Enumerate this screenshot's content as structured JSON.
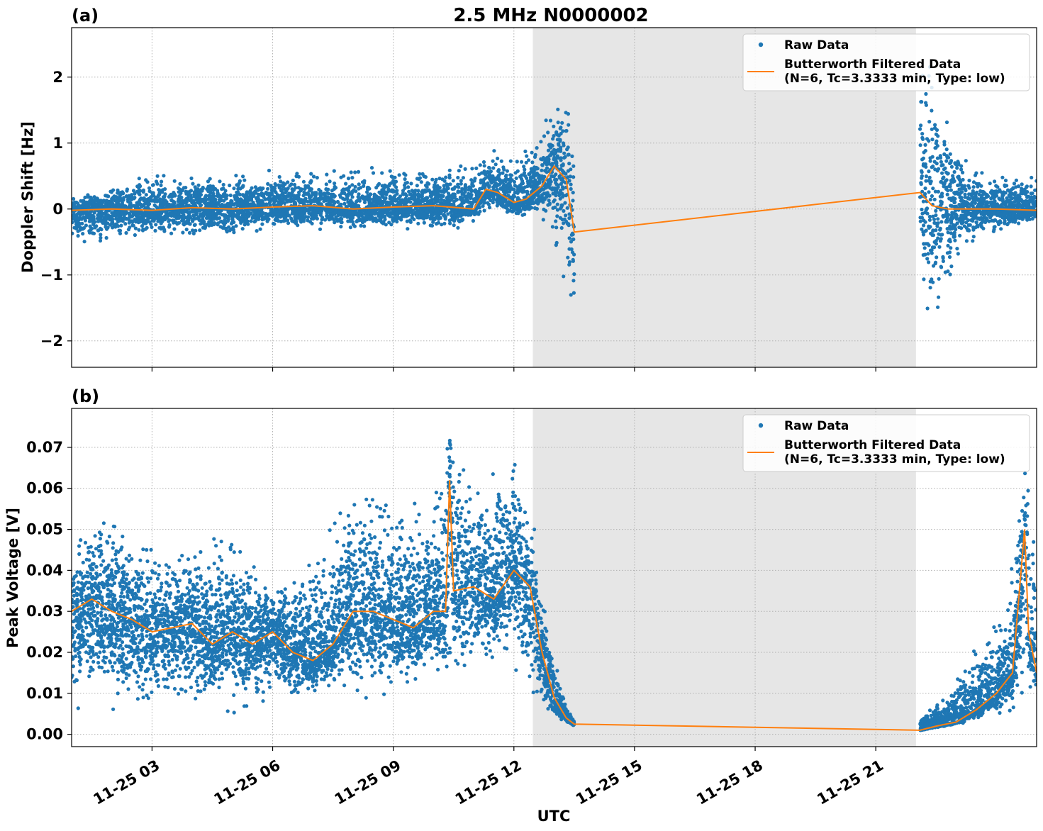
{
  "figure": {
    "title": "2.5 MHz N0000002",
    "xlabel": "UTC"
  },
  "colors": {
    "raw": "#1f77b4",
    "filtered": "#ff7f0e",
    "shade": "#e6e6e6",
    "grid": "#b0b0b0"
  },
  "chart_data": [
    {
      "type": "scatter",
      "panel_label": "(a)",
      "title": "2.5 MHz N0000002",
      "ylabel": "Doppler Shift [Hz]",
      "xlabel": "",
      "x_unit": "hours UTC on 11-25",
      "xlim": [
        1.0,
        25.0
      ],
      "ylim": [
        -2.4,
        2.75
      ],
      "yticks": [
        -2,
        -1,
        0,
        1,
        2
      ],
      "ytick_labels": [
        "−2",
        "−1",
        "0",
        "1",
        "2"
      ],
      "xticks": [
        3,
        6,
        9,
        12,
        15,
        18,
        21
      ],
      "grid": true,
      "legend_position": "top-right",
      "shaded_interval": [
        12.47,
        22.0
      ],
      "data_gap": [
        13.5,
        22.1
      ],
      "series": [
        {
          "name": "Raw Data",
          "kind": "markers",
          "envelope": {
            "x": [
              1.0,
              2.0,
              3.0,
              4.0,
              5.0,
              6.0,
              7.0,
              8.0,
              9.0,
              10.0,
              11.0,
              11.5,
              12.0,
              12.5,
              13.0,
              13.4,
              13.5,
              22.1,
              22.4,
              22.8,
              23.2,
              24.0,
              25.0
            ],
            "lower": [
              -0.6,
              -0.5,
              -0.4,
              -0.4,
              -0.45,
              -0.3,
              -0.3,
              -0.35,
              -0.3,
              -0.3,
              -0.3,
              0.0,
              -0.2,
              -0.1,
              -0.4,
              -1.6,
              -1.55,
              -1.5,
              -2.15,
              -1.1,
              -0.6,
              -0.4,
              -0.2
            ],
            "upper": [
              0.2,
              0.35,
              0.6,
              0.5,
              0.5,
              0.6,
              0.65,
              0.6,
              0.7,
              0.6,
              0.8,
              0.95,
              0.7,
              1.1,
              1.6,
              1.7,
              1.65,
              2.55,
              2.2,
              1.6,
              0.8,
              0.5,
              0.5
            ]
          }
        },
        {
          "name": "Butterworth Filtered Data\n(N=6, Tc=3.3333 min, Type: low)",
          "kind": "line",
          "x": [
            1.0,
            2.0,
            3.0,
            4.0,
            5.0,
            6.0,
            7.0,
            8.0,
            9.0,
            10.0,
            11.0,
            11.3,
            11.6,
            12.0,
            12.3,
            12.7,
            13.0,
            13.3,
            13.5,
            22.1,
            22.4,
            22.8,
            23.2,
            24.0,
            25.0
          ],
          "y": [
            -0.02,
            0.0,
            -0.02,
            0.02,
            0.0,
            0.03,
            0.05,
            0.0,
            0.03,
            0.05,
            0.0,
            0.3,
            0.25,
            0.1,
            0.15,
            0.35,
            0.65,
            0.45,
            -0.35,
            0.25,
            0.05,
            0.0,
            0.0,
            0.0,
            -0.02
          ]
        }
      ]
    },
    {
      "type": "scatter",
      "panel_label": "(b)",
      "title": "",
      "ylabel": "Peak Voltage [V]",
      "xlabel": "UTC",
      "x_unit": "hours UTC on 11-25",
      "xlim": [
        1.0,
        25.0
      ],
      "ylim": [
        -0.003,
        0.0795
      ],
      "yticks": [
        0.0,
        0.01,
        0.02,
        0.03,
        0.04,
        0.05,
        0.06,
        0.07
      ],
      "ytick_labels": [
        "0.00",
        "0.01",
        "0.02",
        "0.03",
        "0.04",
        "0.05",
        "0.06",
        "0.07"
      ],
      "xticks": [
        3,
        6,
        9,
        12,
        15,
        18,
        21
      ],
      "xtick_labels": [
        "11-25 03",
        "11-25 06",
        "11-25 09",
        "11-25 12",
        "11-25 15",
        "11-25 18",
        "11-25 21"
      ],
      "grid": true,
      "legend_position": "top-right",
      "shaded_interval": [
        12.47,
        22.0
      ],
      "data_gap": [
        13.5,
        22.1
      ],
      "series": [
        {
          "name": "Raw Data",
          "kind": "markers",
          "envelope": {
            "x": [
              1.0,
              1.5,
              2.0,
              3.0,
              4.0,
              5.0,
              6.0,
              7.0,
              8.0,
              9.0,
              10.0,
              10.4,
              11.0,
              11.9,
              12.4,
              12.8,
              13.2,
              13.5,
              22.1,
              22.8,
              23.4,
              24.2,
              24.7,
              25.0
            ],
            "lower": [
              0.005,
              0.007,
              0.005,
              0.008,
              0.007,
              0.005,
              0.008,
              0.01,
              0.008,
              0.01,
              0.012,
              0.013,
              0.015,
              0.018,
              0.01,
              0.005,
              0.003,
              0.002,
              0.001,
              0.002,
              0.003,
              0.005,
              0.007,
              0.01
            ],
            "upper": [
              0.045,
              0.057,
              0.055,
              0.045,
              0.045,
              0.053,
              0.035,
              0.045,
              0.06,
              0.055,
              0.058,
              0.076,
              0.06,
              0.071,
              0.058,
              0.03,
              0.01,
              0.003,
              0.004,
              0.01,
              0.02,
              0.03,
              0.066,
              0.047
            ]
          }
        },
        {
          "name": "Butterworth Filtered Data\n(N=6, Tc=3.3333 min, Type: low)",
          "kind": "line",
          "x": [
            1.0,
            1.5,
            2.0,
            2.5,
            3.0,
            3.5,
            4.0,
            4.5,
            5.0,
            5.5,
            6.0,
            6.5,
            7.0,
            7.5,
            8.0,
            8.5,
            9.0,
            9.5,
            10.0,
            10.3,
            10.4,
            10.5,
            11.0,
            11.5,
            12.0,
            12.4,
            12.7,
            13.0,
            13.3,
            13.5,
            22.1,
            22.5,
            23.0,
            23.5,
            24.0,
            24.4,
            24.7,
            24.8,
            25.0
          ],
          "y": [
            0.03,
            0.033,
            0.03,
            0.028,
            0.025,
            0.026,
            0.027,
            0.022,
            0.025,
            0.022,
            0.025,
            0.02,
            0.018,
            0.022,
            0.03,
            0.03,
            0.028,
            0.026,
            0.03,
            0.03,
            0.062,
            0.035,
            0.036,
            0.033,
            0.04,
            0.036,
            0.02,
            0.009,
            0.004,
            0.0025,
            0.001,
            0.002,
            0.003,
            0.006,
            0.01,
            0.015,
            0.05,
            0.025,
            0.015
          ]
        }
      ]
    }
  ]
}
